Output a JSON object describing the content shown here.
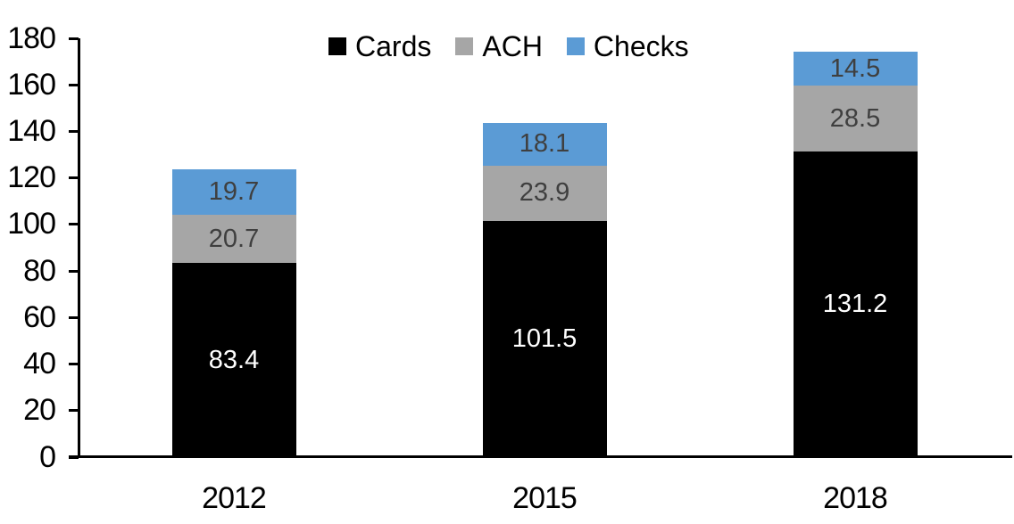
{
  "chart_data": {
    "type": "bar",
    "stacked": true,
    "title": "",
    "xlabel": "",
    "ylabel": "",
    "categories": [
      "2012",
      "2015",
      "2018"
    ],
    "series": [
      {
        "name": "Cards",
        "color": "#000000",
        "label_color": "#ffffff",
        "values": [
          83.4,
          101.5,
          131.2
        ]
      },
      {
        "name": "ACH",
        "color": "#a6a6a6",
        "label_color": "#3f3f3f",
        "values": [
          20.7,
          23.9,
          28.5
        ]
      },
      {
        "name": "Checks",
        "color": "#5b9bd5",
        "label_color": "#3f3f3f",
        "values": [
          19.7,
          18.1,
          14.5
        ]
      }
    ],
    "ylim": [
      0,
      180
    ],
    "yticks": [
      0,
      20,
      40,
      60,
      80,
      100,
      120,
      140,
      160,
      180
    ],
    "grid": false,
    "legend_position": "top-center",
    "legend_entries": [
      "Cards",
      "ACH",
      "Checks"
    ]
  },
  "colors": {
    "background": "#ffffff",
    "axis": "#000000",
    "cards": "#000000",
    "ach": "#a6a6a6",
    "checks": "#5b9bd5"
  }
}
